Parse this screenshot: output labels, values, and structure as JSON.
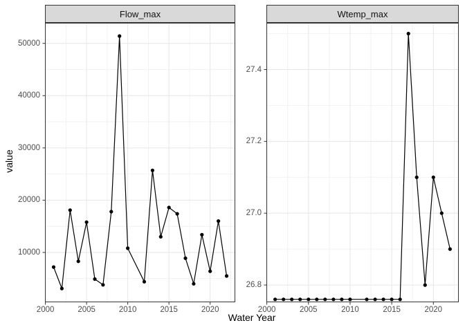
{
  "figure": {
    "y_axis_title": "value",
    "x_axis_title": "Water Year",
    "facet_titles": [
      "Flow_max",
      "Wtemp_max"
    ],
    "colors": {
      "strip_bg": "#D9D9D9",
      "strip_border": "#333333",
      "panel_bg": "#FFFFFF",
      "panel_border": "#333333",
      "grid_major": "#E6E6E6",
      "grid_minor": "#F2F2F2",
      "line": "#000000",
      "point": "#000000",
      "axis_text": "#4D4D4D",
      "title_text": "#000000"
    }
  },
  "chart_data": [
    {
      "type": "line",
      "title": "Flow_max",
      "xlabel": "Water Year",
      "ylabel": "value",
      "marker": "circle",
      "grid": true,
      "legend": false,
      "x": [
        2001,
        2002,
        2003,
        2004,
        2005,
        2006,
        2007,
        2008,
        2009,
        2010,
        2012,
        2013,
        2014,
        2015,
        2016,
        2017,
        2018,
        2019,
        2020,
        2021,
        2022
      ],
      "y": [
        7200,
        3100,
        18100,
        8300,
        15800,
        4900,
        3800,
        17800,
        51400,
        10800,
        4400,
        25700,
        13000,
        18600,
        17400,
        8900,
        4000,
        13400,
        6400,
        16000,
        5500
      ],
      "xlim": [
        1999.95,
        2023.05
      ],
      "ylim": [
        470,
        53930
      ],
      "xticks": [
        2000,
        2005,
        2010,
        2015,
        2020
      ],
      "xtick_labels": [
        "2000",
        "2005",
        "2010",
        "2015",
        "2020"
      ],
      "xticks_minor": [
        2002.5,
        2007.5,
        2012.5,
        2017.5,
        2022.5
      ],
      "yticks": [
        10000,
        20000,
        30000,
        40000,
        50000
      ],
      "ytick_labels": [
        "10000",
        "20000",
        "30000",
        "40000",
        "50000"
      ],
      "yticks_minor": [
        5000,
        15000,
        25000,
        35000,
        45000
      ]
    },
    {
      "type": "line",
      "title": "Wtemp_max",
      "xlabel": "Water Year",
      "ylabel": "value",
      "marker": "circle",
      "grid": true,
      "legend": false,
      "x": [
        2001,
        2002,
        2003,
        2004,
        2005,
        2006,
        2007,
        2008,
        2009,
        2010,
        2012,
        2013,
        2014,
        2015,
        2016,
        2017,
        2018,
        2019,
        2020,
        2021,
        2022
      ],
      "y": [
        26.76,
        26.76,
        26.76,
        26.76,
        26.76,
        26.76,
        26.76,
        26.76,
        26.76,
        26.76,
        26.76,
        26.76,
        26.76,
        26.76,
        26.76,
        27.5,
        27.1,
        26.8,
        27.1,
        27.0,
        26.9
      ],
      "xlim": [
        1999.95,
        2023.05
      ],
      "ylim": [
        26.752,
        27.53
      ],
      "xticks": [
        2000,
        2005,
        2010,
        2015,
        2020
      ],
      "xtick_labels": [
        "2000",
        "2005",
        "2010",
        "2015",
        "2020"
      ],
      "xticks_minor": [
        2002.5,
        2007.5,
        2012.5,
        2017.5,
        2022.5
      ],
      "yticks": [
        26.8,
        27.0,
        27.2,
        27.4
      ],
      "ytick_labels": [
        "26.8",
        "27.0",
        "27.2",
        "27.4"
      ],
      "yticks_minor": [
        26.9,
        27.1,
        27.3,
        27.5
      ]
    }
  ]
}
